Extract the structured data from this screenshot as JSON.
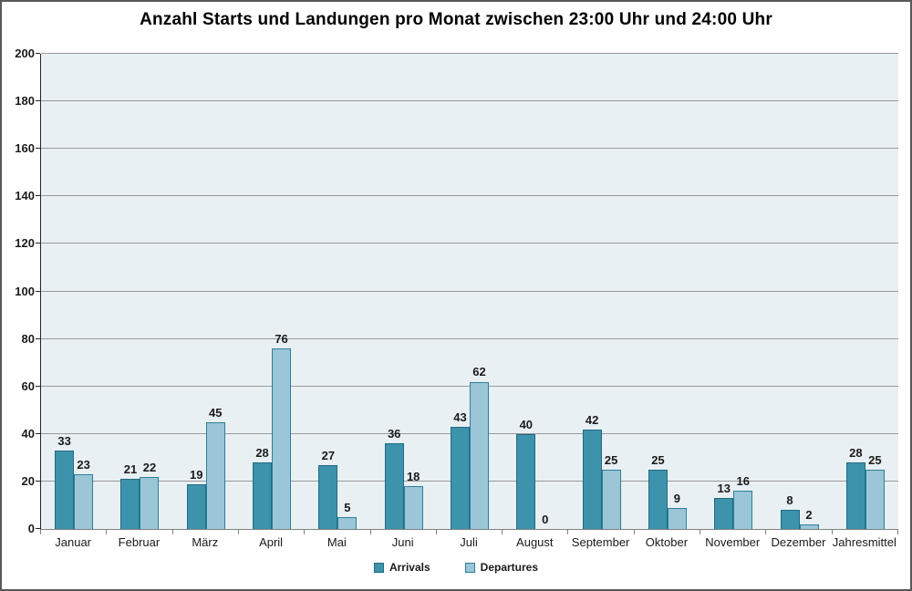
{
  "title": "Anzahl Starts und Landungen pro Monat zwischen 23:00 Uhr und 24:00 Uhr",
  "colors": {
    "arrivals_fill": "#3D93AC",
    "arrivals_border": "#1F6B82",
    "departures_fill": "#9AC6D8",
    "departures_border": "#2E7E98",
    "plot_background": "#E9F0F4",
    "gridline": "#999999",
    "x_axis_line": "#808080",
    "y_axis_line": "#262626",
    "text": "#1a1a1a"
  },
  "chart_data": {
    "type": "bar",
    "title": "Anzahl Starts und Landungen pro Monat zwischen 23:00 Uhr und 24:00 Uhr",
    "categories": [
      "Januar",
      "Februar",
      "März",
      "April",
      "Mai",
      "Juni",
      "Juli",
      "August",
      "September",
      "Oktober",
      "November",
      "Dezember",
      "Jahresmittel"
    ],
    "series": [
      {
        "name": "Arrivals",
        "values": [
          33,
          21,
          19,
          28,
          27,
          36,
          43,
          40,
          42,
          25,
          13,
          8,
          28
        ]
      },
      {
        "name": "Departures",
        "values": [
          23,
          22,
          45,
          76,
          5,
          18,
          62,
          0,
          25,
          9,
          16,
          2,
          25
        ]
      }
    ],
    "xlabel": "",
    "ylabel": "",
    "ylim": [
      0,
      200
    ],
    "ytick_interval": 20,
    "grid": true,
    "legend_position": "bottom",
    "value_labels_shown": true
  }
}
